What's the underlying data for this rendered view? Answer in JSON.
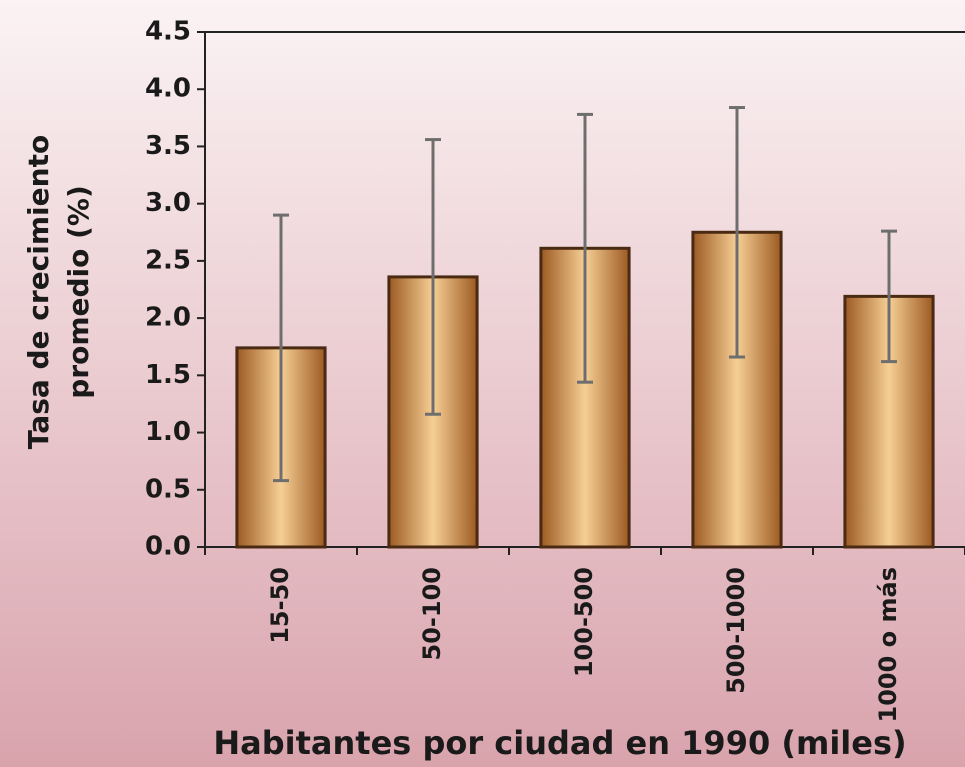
{
  "chart_data": {
    "type": "bar",
    "ylabel": [
      "Tasa de crecimiento",
      "promedio (%)"
    ],
    "xlabel": "Habitantes por ciudad en 1990 (miles)",
    "categories": [
      "15-50",
      "50-100",
      "100-500",
      "500-1000",
      "1000 o más"
    ],
    "values": [
      1.74,
      2.36,
      2.61,
      2.75,
      2.19
    ],
    "errors": [
      1.16,
      1.2,
      1.17,
      1.09,
      0.57
    ],
    "color": "#c8843e",
    "ylim": [
      0,
      4.5
    ],
    "yticks": [
      {
        "value": 0,
        "label": "0.0"
      },
      0.5,
      {
        "value": 1,
        "label": "1.0"
      },
      1.5,
      {
        "value": 2,
        "label": "2.0"
      },
      2.5,
      {
        "value": 3,
        "label": "3.0"
      },
      3.5,
      {
        "value": 4,
        "label": "4.0"
      },
      4.5
    ],
    "grid": false
  }
}
